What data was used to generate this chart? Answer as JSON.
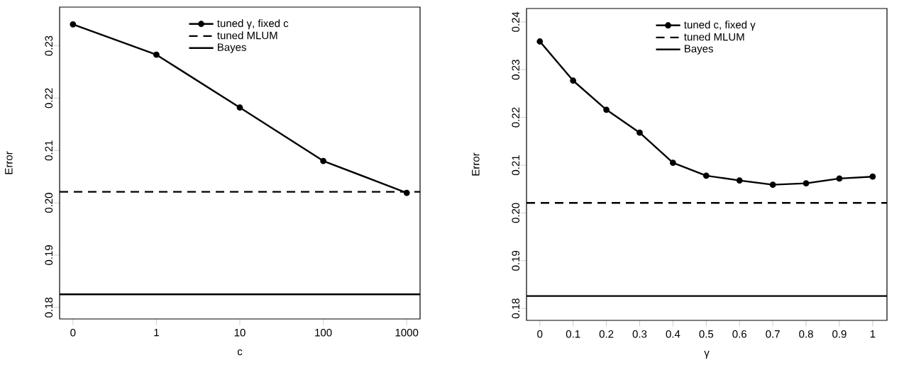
{
  "chart_data": [
    {
      "type": "line",
      "xlabel": "c",
      "ylabel": "Error",
      "categories": [
        "0",
        "1",
        "10",
        "100",
        "1000"
      ],
      "series": [
        {
          "name": "tuned γ, fixed c",
          "color": "#000000",
          "values": [
            0.2341,
            0.2283,
            0.2182,
            0.208,
            0.2019
          ]
        }
      ],
      "ref_lines": [
        {
          "axis": "y",
          "value": 0.2021,
          "label": "tuned MLUM",
          "color": "#000000",
          "line_style": "dashed"
        },
        {
          "axis": "y",
          "value": 0.1825,
          "label": "Bayes",
          "color": "#000000",
          "line_style": "solid"
        }
      ],
      "ylim": [
        0.1778,
        0.2374
      ],
      "yticks": [
        0.18,
        0.19,
        {
          "value": 0.2,
          "label": "0.20"
        },
        0.21,
        0.22,
        0.23
      ],
      "marker": "circle",
      "line_style": "solid",
      "legend": "top",
      "grid": false
    },
    {
      "type": "line",
      "xlabel": "γ",
      "ylabel": "Error",
      "x": [
        0,
        0.1,
        0.2,
        0.3,
        0.4,
        0.5,
        0.6,
        0.7,
        0.8,
        0.9,
        1
      ],
      "series": [
        {
          "name": "tuned c, fixed γ",
          "color": "#000000",
          "values": [
            0.2359,
            0.2277,
            0.2216,
            0.2168,
            0.2105,
            0.2078,
            0.2068,
            0.2059,
            0.2062,
            0.2072,
            0.2076
          ]
        }
      ],
      "ref_lines": [
        {
          "axis": "y",
          "value": 0.2021,
          "label": "tuned MLUM",
          "color": "#000000",
          "line_style": "dashed"
        },
        {
          "axis": "y",
          "value": 0.1826,
          "label": "Bayes",
          "color": "#000000",
          "line_style": "solid"
        }
      ],
      "xlim": [
        -0.04,
        1.043
      ],
      "xticks": [
        0,
        0.1,
        0.2,
        0.3,
        0.4,
        0.5,
        0.6,
        0.7,
        0.8,
        0.9,
        1
      ],
      "ylim": [
        0.1775,
        0.2428
      ],
      "yticks": [
        0.18,
        0.19,
        {
          "value": 0.2,
          "label": "0.20"
        },
        0.21,
        0.22,
        0.23,
        0.24
      ],
      "marker": "circle",
      "line_style": "solid",
      "legend": "top",
      "grid": false
    }
  ]
}
